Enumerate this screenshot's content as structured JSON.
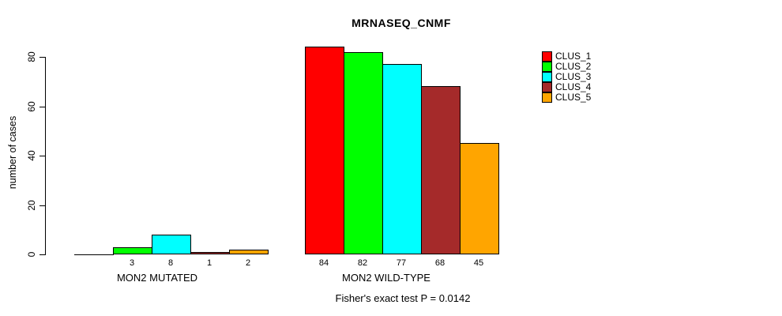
{
  "chart_data": {
    "type": "bar",
    "title": "MRNASEQ_CNMF",
    "ylabel": "number of cases",
    "xlabel": "",
    "categories": [
      "MON2 MUTATED",
      "MON2 WILD-TYPE"
    ],
    "series": [
      {
        "name": "CLUS_1",
        "color": "#FF0000",
        "values": [
          0,
          84
        ]
      },
      {
        "name": "CLUS_2",
        "color": "#00FF00",
        "values": [
          3,
          82
        ]
      },
      {
        "name": "CLUS_3",
        "color": "#00FFFF",
        "values": [
          8,
          77
        ]
      },
      {
        "name": "CLUS_4",
        "color": "#A52A2A",
        "values": [
          1,
          68
        ]
      },
      {
        "name": "CLUS_5",
        "color": "#FFA500",
        "values": [
          2,
          45
        ]
      }
    ],
    "yticks": [
      0,
      20,
      40,
      60,
      80
    ],
    "ylim": [
      0,
      87
    ],
    "grid": false,
    "legend_position": "right",
    "legend_entries": [
      "CLUS_1",
      "CLUS_2",
      "CLUS_3",
      "CLUS_4",
      "CLUS_5"
    ],
    "bar_value_labels_shown": true,
    "zero_value_labels_hidden": true,
    "note": "Fisher's exact test P = 0.0142",
    "text_color": "#000000",
    "background_color": "#FFFFFF"
  }
}
